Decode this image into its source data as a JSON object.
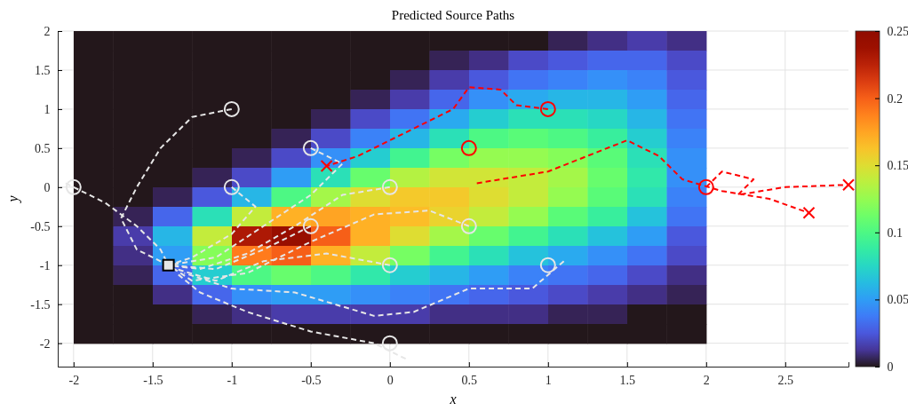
{
  "chart_data": [
    {
      "type": "heatmap",
      "clim": [
        0,
        0.25
      ],
      "cticks": [
        0,
        0.05,
        0.1,
        0.15,
        0.2,
        0.25
      ],
      "categories": [
        null,
        null,
        null,
        null,
        null,
        null,
        null,
        null,
        null,
        null,
        null,
        null,
        null,
        null,
        null,
        null
      ],
      "y_categories": [
        null,
        null,
        null,
        null,
        null,
        null,
        null,
        null,
        null,
        null,
        null,
        null,
        null,
        null,
        null,
        null
      ],
      "cells": [
        [
          0,
          0,
          0,
          0,
          0,
          0,
          0,
          0,
          0,
          0,
          0,
          0,
          0.005,
          0.01,
          0.015,
          0.01
        ],
        [
          0,
          0,
          0,
          0,
          0,
          0,
          0,
          0,
          0,
          0.005,
          0.01,
          0.02,
          0.025,
          0.03,
          0.03,
          0.02
        ],
        [
          0,
          0,
          0,
          0,
          0,
          0,
          0,
          0,
          0.005,
          0.015,
          0.025,
          0.035,
          0.04,
          0.045,
          0.04,
          0.025
        ],
        [
          0,
          0,
          0,
          0,
          0,
          0,
          0,
          0.005,
          0.015,
          0.03,
          0.045,
          0.055,
          0.06,
          0.06,
          0.05,
          0.03
        ],
        [
          0,
          0,
          0,
          0,
          0,
          0,
          0.005,
          0.02,
          0.035,
          0.055,
          0.07,
          0.08,
          0.08,
          0.075,
          0.06,
          0.035
        ],
        [
          0,
          0,
          0,
          0,
          0,
          0.005,
          0.02,
          0.04,
          0.06,
          0.08,
          0.1,
          0.105,
          0.1,
          0.09,
          0.07,
          0.04
        ],
        [
          0,
          0,
          0,
          0,
          0.005,
          0.02,
          0.045,
          0.07,
          0.095,
          0.115,
          0.125,
          0.125,
          0.12,
          0.105,
          0.08,
          0.045
        ],
        [
          0,
          0,
          0,
          0.005,
          0.02,
          0.05,
          0.08,
          0.11,
          0.135,
          0.145,
          0.145,
          0.14,
          0.13,
          0.11,
          0.085,
          0.045
        ],
        [
          0,
          0,
          0.005,
          0.025,
          0.06,
          0.1,
          0.13,
          0.15,
          0.16,
          0.16,
          0.15,
          0.14,
          0.125,
          0.105,
          0.08,
          0.04
        ],
        [
          0,
          0.005,
          0.03,
          0.08,
          0.14,
          0.17,
          0.175,
          0.17,
          0.165,
          0.155,
          0.14,
          0.125,
          0.105,
          0.09,
          0.065,
          0.035
        ],
        [
          0,
          0.015,
          0.06,
          0.14,
          0.23,
          0.24,
          0.2,
          0.17,
          0.15,
          0.13,
          0.11,
          0.095,
          0.08,
          0.065,
          0.05,
          0.025
        ],
        [
          0,
          0.01,
          0.05,
          0.12,
          0.19,
          0.2,
          0.17,
          0.14,
          0.115,
          0.095,
          0.08,
          0.065,
          0.055,
          0.045,
          0.035,
          0.02
        ],
        [
          0,
          0.005,
          0.03,
          0.07,
          0.1,
          0.11,
          0.1,
          0.085,
          0.07,
          0.06,
          0.05,
          0.04,
          0.035,
          0.03,
          0.02,
          0.01
        ],
        [
          0,
          0,
          0.01,
          0.03,
          0.045,
          0.05,
          0.05,
          0.045,
          0.04,
          0.035,
          0.03,
          0.025,
          0.02,
          0.015,
          0.01,
          0.005
        ],
        [
          0,
          0,
          0,
          0.005,
          0.01,
          0.015,
          0.015,
          0.015,
          0.015,
          0.01,
          0.01,
          0.01,
          0.005,
          0.005,
          0,
          0
        ],
        [
          0,
          0,
          0,
          0,
          0,
          0,
          0,
          0,
          0,
          0,
          0,
          0,
          0,
          0,
          0,
          0
        ]
      ]
    },
    {
      "type": "line",
      "title": "Predicted Source Paths",
      "xlabel": "x",
      "ylabel": "y",
      "xlim": [
        -2.1,
        2.9
      ],
      "ylim": [
        -2.3,
        2
      ],
      "xticks": [
        -2,
        -1.5,
        -1,
        -0.5,
        0,
        0.5,
        1,
        1.5,
        2,
        2.5
      ],
      "yticks": [
        -2,
        -1.5,
        -1,
        -0.5,
        0,
        0.5,
        1,
        1.5,
        2
      ],
      "grid": true,
      "line_style": "dashed",
      "series": [
        {
          "color": "#e6e6e6",
          "x": [
            -1,
            -1.25,
            -1.45,
            -1.6,
            -1.7,
            -1.6,
            -1.4
          ],
          "values": [
            1,
            0.9,
            0.5,
            0,
            -0.4,
            -0.8,
            -1
          ]
        },
        {
          "color": "#e6e6e6",
          "x": [
            -2.05,
            -1.8,
            -1.6,
            -1.45,
            -1.4
          ],
          "values": [
            0.05,
            -0.2,
            -0.5,
            -0.8,
            -1
          ]
        },
        {
          "color": "#e6e6e6",
          "x": [
            -0.5,
            -0.3,
            -0.5,
            -0.8,
            -1.1,
            -1.4
          ],
          "values": [
            0.5,
            0.3,
            -0.1,
            -0.5,
            -0.9,
            -1
          ]
        },
        {
          "color": "#e6e6e6",
          "x": [
            -1,
            -0.85,
            -1,
            -1.25,
            -1.4
          ],
          "values": [
            0,
            -0.25,
            -0.6,
            -0.9,
            -1
          ]
        },
        {
          "color": "#e6e6e6",
          "x": [
            0,
            -0.3,
            -0.6,
            -0.9,
            -1.2,
            -1.4
          ],
          "values": [
            0,
            -0.1,
            -0.5,
            -0.85,
            -1.05,
            -1
          ]
        },
        {
          "color": "#e6e6e6",
          "x": [
            0.5,
            0.25,
            -0.1,
            -0.5,
            -0.9,
            -1.25,
            -1.4
          ],
          "values": [
            -0.5,
            -0.3,
            -0.35,
            -0.7,
            -1.1,
            -1.2,
            -1
          ]
        },
        {
          "color": "#e6e6e6",
          "x": [
            0,
            -0.4,
            -0.8,
            -1.1,
            -1.35
          ],
          "values": [
            -1,
            -0.85,
            -0.95,
            -1.2,
            -1.05
          ]
        },
        {
          "color": "#e6e6e6",
          "x": [
            1.1,
            0.9,
            0.5,
            0.15,
            -0.1,
            -0.6,
            -1,
            -1.3
          ],
          "values": [
            -0.95,
            -1.3,
            -1.3,
            -1.6,
            -1.65,
            -1.35,
            -1.3,
            -1.1
          ]
        },
        {
          "color": "#e6e6e6",
          "x": [
            0.1,
            -0.1,
            -0.5,
            -0.9,
            -1.2,
            -1.35
          ],
          "values": [
            -2.2,
            -2,
            -1.85,
            -1.6,
            -1.35,
            -1.1
          ]
        },
        {
          "color": "#e6e6e6",
          "x": [
            -0.5,
            -0.8,
            -1.1,
            -1.4
          ],
          "values": [
            -0.5,
            -0.8,
            -1.05,
            -1
          ]
        },
        {
          "color": "#ff0000",
          "x": [
            1,
            0.8,
            0.7,
            0.5,
            0.4,
            0.1,
            -0.2,
            -0.4
          ],
          "values": [
            1,
            1.05,
            1.25,
            1.28,
            1,
            0.7,
            0.4,
            0.27
          ]
        },
        {
          "color": "#ff0000",
          "x": [
            0.55,
            1,
            1.5,
            1.7,
            1.85,
            2.1,
            2.4,
            2.65
          ],
          "values": [
            0.05,
            0.2,
            0.6,
            0.4,
            0.1,
            -0.05,
            -0.15,
            -0.33
          ]
        },
        {
          "color": "#ff0000",
          "x": [
            2,
            2.1,
            2.3,
            2.2,
            2.5,
            2.9
          ],
          "values": [
            0,
            0.2,
            0.1,
            -0.1,
            0,
            0.03
          ]
        },
        {
          "type": "scatter",
          "marker": "circle",
          "color": "#e6e6e6",
          "x": [
            -2,
            -1,
            -1,
            -0.5,
            -0.5,
            0,
            0,
            0,
            0.5,
            1
          ],
          "values": [
            0,
            1,
            0,
            0.5,
            -0.5,
            0,
            -1,
            -2,
            -0.5,
            -1
          ]
        },
        {
          "type": "scatter",
          "marker": "square",
          "color": "#000000",
          "x": [
            -1.4
          ],
          "values": [
            -1
          ]
        },
        {
          "type": "scatter",
          "marker": "circle",
          "color": "#ff0000",
          "x": [
            1,
            0.5,
            2
          ],
          "values": [
            1,
            0.5,
            0
          ]
        },
        {
          "type": "scatter",
          "marker": "cross",
          "color": "#ff0000",
          "x": [
            -0.4,
            2.65,
            2.9
          ],
          "values": [
            0.27,
            -0.33,
            0.03
          ]
        }
      ]
    }
  ]
}
